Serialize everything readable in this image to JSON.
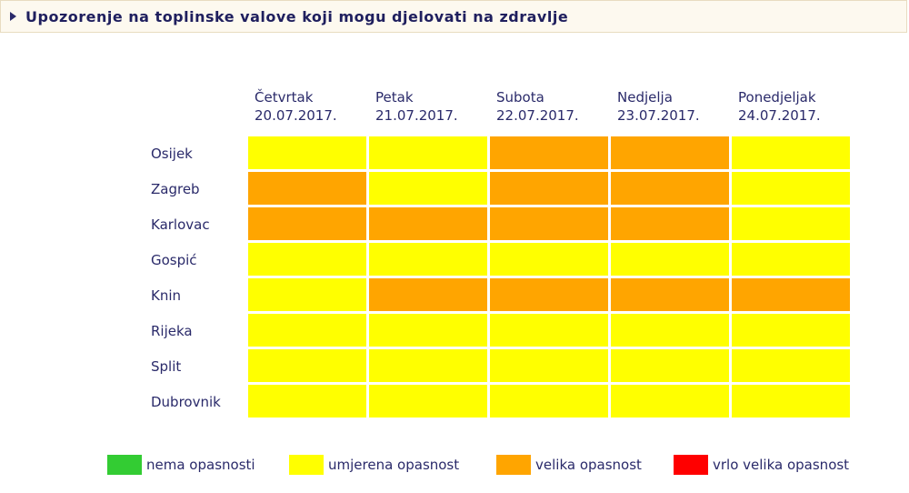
{
  "title": "Upozorenje na toplinske valove koji mogu djelovati na zdravlje",
  "days": [
    {
      "name": "Četvrtak",
      "date": "20.07.2017."
    },
    {
      "name": "Petak",
      "date": "21.07.2017."
    },
    {
      "name": "Subota",
      "date": "22.07.2017."
    },
    {
      "name": "Nedjelja",
      "date": "23.07.2017."
    },
    {
      "name": "Ponedjeljak",
      "date": "24.07.2017."
    }
  ],
  "rows": [
    {
      "city": "Osijek",
      "levels": [
        "umjerena",
        "umjerena",
        "velika",
        "velika",
        "umjerena"
      ]
    },
    {
      "city": "Zagreb",
      "levels": [
        "velika",
        "umjerena",
        "velika",
        "velika",
        "umjerena"
      ]
    },
    {
      "city": "Karlovac",
      "levels": [
        "velika",
        "velika",
        "velika",
        "velika",
        "umjerena"
      ]
    },
    {
      "city": "Gospić",
      "levels": [
        "umjerena",
        "umjerena",
        "umjerena",
        "umjerena",
        "umjerena"
      ]
    },
    {
      "city": "Knin",
      "levels": [
        "umjerena",
        "velika",
        "velika",
        "velika",
        "velika"
      ]
    },
    {
      "city": "Rijeka",
      "levels": [
        "umjerena",
        "umjerena",
        "umjerena",
        "umjerena",
        "umjerena"
      ]
    },
    {
      "city": "Split",
      "levels": [
        "umjerena",
        "umjerena",
        "umjerena",
        "umjerena",
        "umjerena"
      ]
    },
    {
      "city": "Dubrovnik",
      "levels": [
        "umjerena",
        "umjerena",
        "umjerena",
        "umjerena",
        "umjerena"
      ]
    }
  ],
  "level_colors": {
    "nema": "#33cc33",
    "umjerena": "#ffff00",
    "velika": "#ffa500",
    "vrlo_velika": "#ff0000"
  },
  "legend": [
    {
      "key": "nema",
      "label": "nema opasnosti",
      "color": "#33cc33"
    },
    {
      "key": "umjerena",
      "label": "umjerena opasnost",
      "color": "#ffff00"
    },
    {
      "key": "velika",
      "label": "velika opasnost",
      "color": "#ffa500"
    },
    {
      "key": "vrlo_velika",
      "label": "vrlo velika opasnost",
      "color": "#ff0000"
    }
  ]
}
